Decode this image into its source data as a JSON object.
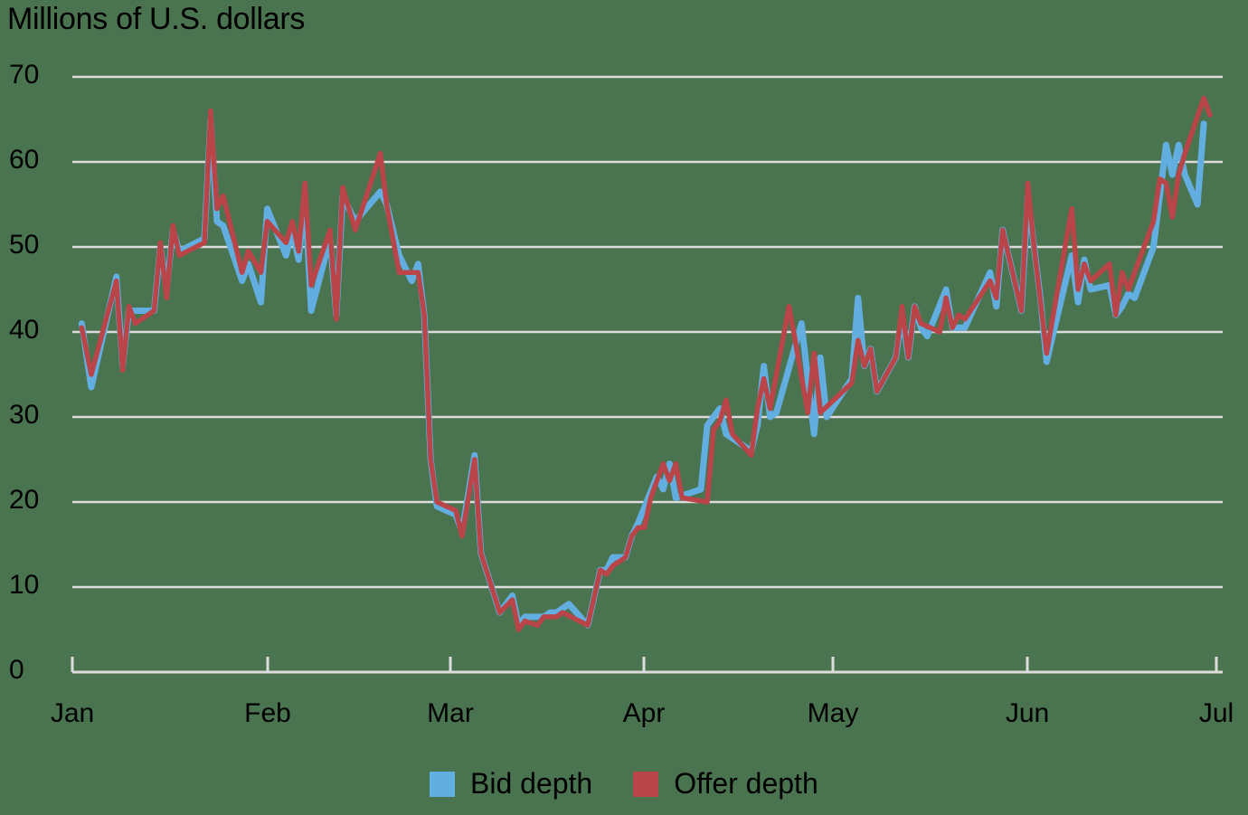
{
  "chart_data": {
    "type": "line",
    "title": "",
    "ylabel": "Millions of U.S. dollars",
    "xlabel": "",
    "ylim": [
      0,
      70
    ],
    "yticks": [
      0,
      10,
      20,
      30,
      40,
      50,
      60,
      70
    ],
    "xtick_labels": [
      "Jan",
      "Feb",
      "Mar",
      "Apr",
      "May",
      "Jun",
      "Jul"
    ],
    "grid": true,
    "legend_position": "bottom",
    "x_unit": "day index from Jan 1 (Jul 1 = 182)",
    "series": [
      {
        "name": "Bid depth",
        "color": "#62aee0",
        "points": [
          [
            1.5,
            41
          ],
          [
            3,
            33.5
          ],
          [
            7,
            46.5
          ],
          [
            8,
            36
          ],
          [
            9,
            42.5
          ],
          [
            13,
            42.5
          ],
          [
            14,
            50
          ],
          [
            15,
            45
          ],
          [
            16,
            52
          ],
          [
            17,
            49.5
          ],
          [
            21,
            51
          ],
          [
            22,
            65
          ],
          [
            23,
            53
          ],
          [
            24,
            52.5
          ],
          [
            27,
            46
          ],
          [
            28,
            48
          ],
          [
            30,
            43.5
          ],
          [
            31,
            54.5
          ],
          [
            34,
            49
          ],
          [
            35,
            52
          ],
          [
            36,
            48.5
          ],
          [
            37,
            56
          ],
          [
            38,
            42.5
          ],
          [
            41,
            51
          ],
          [
            42,
            42
          ],
          [
            43,
            56
          ],
          [
            45,
            53
          ],
          [
            49,
            56.5
          ],
          [
            50,
            55
          ],
          [
            52,
            49
          ],
          [
            54,
            46
          ],
          [
            55,
            48
          ],
          [
            56,
            42
          ],
          [
            57,
            25
          ],
          [
            58,
            19.5
          ],
          [
            61,
            18.5
          ],
          [
            62,
            16.5
          ],
          [
            64,
            25.5
          ],
          [
            65,
            14
          ],
          [
            68,
            7
          ],
          [
            70,
            9
          ],
          [
            71,
            5.5
          ],
          [
            72,
            6.5
          ],
          [
            75,
            6.5
          ],
          [
            76,
            7
          ],
          [
            77,
            7
          ],
          [
            79,
            8
          ],
          [
            82,
            5.5
          ],
          [
            84,
            12
          ],
          [
            85,
            12
          ],
          [
            86,
            13.5
          ],
          [
            88,
            13.5
          ],
          [
            89,
            16
          ],
          [
            90,
            17.5
          ],
          [
            93,
            23
          ],
          [
            94,
            21.5
          ],
          [
            95,
            24.5
          ],
          [
            96,
            20.5
          ],
          [
            100,
            21.5
          ],
          [
            101,
            29
          ],
          [
            103,
            31
          ],
          [
            104,
            28
          ],
          [
            108,
            26
          ],
          [
            109,
            29
          ],
          [
            110,
            36
          ],
          [
            111,
            30
          ],
          [
            112,
            30.5
          ],
          [
            116,
            41
          ],
          [
            118,
            28
          ],
          [
            119,
            37
          ],
          [
            120,
            30
          ],
          [
            124,
            34.5
          ],
          [
            125,
            44
          ],
          [
            126,
            36
          ],
          [
            127,
            38
          ],
          [
            128,
            33
          ],
          [
            131,
            37
          ],
          [
            132,
            42
          ],
          [
            133,
            37
          ],
          [
            134,
            43
          ],
          [
            135,
            40.5
          ],
          [
            136,
            39.5
          ],
          [
            139,
            45
          ],
          [
            140,
            40.5
          ],
          [
            142,
            40.5
          ],
          [
            146,
            47
          ],
          [
            147,
            43
          ],
          [
            148,
            52
          ],
          [
            151,
            42.5
          ],
          [
            152,
            56
          ],
          [
            154,
            44
          ],
          [
            155,
            36.5
          ],
          [
            159,
            49
          ],
          [
            160,
            43.5
          ],
          [
            161,
            48.5
          ],
          [
            162,
            45
          ],
          [
            165,
            45.5
          ],
          [
            166,
            42
          ],
          [
            167,
            43
          ],
          [
            168,
            44.5
          ],
          [
            169,
            44
          ],
          [
            172,
            50
          ],
          [
            174,
            62
          ],
          [
            175,
            58.5
          ],
          [
            176,
            62
          ],
          [
            177,
            58.5
          ],
          [
            179,
            55
          ],
          [
            180,
            64.5
          ]
        ]
      },
      {
        "name": "Offer depth",
        "color": "#b94548",
        "points": [
          [
            1.5,
            40.5
          ],
          [
            3,
            35
          ],
          [
            7,
            46
          ],
          [
            8,
            35.5
          ],
          [
            9,
            43
          ],
          [
            10,
            41
          ],
          [
            13,
            42.5
          ],
          [
            14,
            50.5
          ],
          [
            15,
            44
          ],
          [
            16,
            52.5
          ],
          [
            17,
            49
          ],
          [
            21,
            50.5
          ],
          [
            22,
            66
          ],
          [
            23,
            54.5
          ],
          [
            24,
            56
          ],
          [
            27,
            47
          ],
          [
            28,
            49.5
          ],
          [
            30,
            47
          ],
          [
            31,
            53
          ],
          [
            34,
            50.5
          ],
          [
            35,
            53
          ],
          [
            36,
            49.5
          ],
          [
            37,
            57.5
          ],
          [
            38,
            45.5
          ],
          [
            41,
            52
          ],
          [
            42,
            41.5
          ],
          [
            43,
            57
          ],
          [
            45,
            52
          ],
          [
            49,
            61
          ],
          [
            50,
            55
          ],
          [
            52,
            47
          ],
          [
            55,
            47
          ],
          [
            56,
            42
          ],
          [
            57,
            25
          ],
          [
            58,
            20
          ],
          [
            61,
            19
          ],
          [
            62,
            16
          ],
          [
            64,
            25
          ],
          [
            65,
            14
          ],
          [
            68,
            7
          ],
          [
            70,
            8.5
          ],
          [
            71,
            5
          ],
          [
            72,
            6
          ],
          [
            74,
            5.5
          ],
          [
            75,
            6.5
          ],
          [
            77,
            6.5
          ],
          [
            78,
            7
          ],
          [
            82,
            5.5
          ],
          [
            84,
            12
          ],
          [
            85,
            11.5
          ],
          [
            86,
            12.5
          ],
          [
            88,
            13.5
          ],
          [
            89,
            16
          ],
          [
            90,
            17
          ],
          [
            91,
            17
          ],
          [
            92,
            20.5
          ],
          [
            94,
            24.5
          ],
          [
            95,
            22.5
          ],
          [
            96,
            24.5
          ],
          [
            97,
            20.5
          ],
          [
            101,
            20
          ],
          [
            102,
            28.5
          ],
          [
            103,
            29.5
          ],
          [
            104,
            32
          ],
          [
            105,
            28
          ],
          [
            108,
            25.5
          ],
          [
            109,
            31
          ],
          [
            110,
            34.5
          ],
          [
            111,
            31
          ],
          [
            114,
            43
          ],
          [
            115,
            39
          ],
          [
            117,
            30.5
          ],
          [
            118,
            37.5
          ],
          [
            119,
            30.5
          ],
          [
            124,
            34
          ],
          [
            125,
            39
          ],
          [
            126,
            36
          ],
          [
            127,
            38
          ],
          [
            128,
            33
          ],
          [
            131,
            37
          ],
          [
            132,
            43
          ],
          [
            133,
            37
          ],
          [
            134,
            43
          ],
          [
            135,
            41
          ],
          [
            138,
            40
          ],
          [
            139,
            44
          ],
          [
            140,
            40.5
          ],
          [
            141,
            42
          ],
          [
            142,
            41.5
          ],
          [
            146,
            46
          ],
          [
            147,
            44
          ],
          [
            148,
            52
          ],
          [
            151,
            42.5
          ],
          [
            152,
            57.5
          ],
          [
            153,
            50
          ],
          [
            155,
            37.5
          ],
          [
            159,
            54.5
          ],
          [
            160,
            45
          ],
          [
            161,
            48
          ],
          [
            162,
            46
          ],
          [
            165,
            48
          ],
          [
            166,
            42
          ],
          [
            167,
            47
          ],
          [
            168,
            45
          ],
          [
            171,
            51
          ],
          [
            172,
            53
          ],
          [
            173,
            58
          ],
          [
            174,
            57.5
          ],
          [
            175,
            53.5
          ],
          [
            176,
            58.5
          ],
          [
            177,
            61
          ],
          [
            180,
            67.5
          ],
          [
            181,
            65.5
          ]
        ]
      }
    ]
  },
  "header": {
    "unit_label": "Millions of U.S. dollars"
  },
  "legend": {
    "items": [
      {
        "label": "Bid depth",
        "color": "#62aee0"
      },
      {
        "label": "Offer depth",
        "color": "#b94548"
      }
    ]
  },
  "colors": {
    "background": "#4a7350",
    "grid": "#dcdcdc",
    "text": "#000000"
  }
}
